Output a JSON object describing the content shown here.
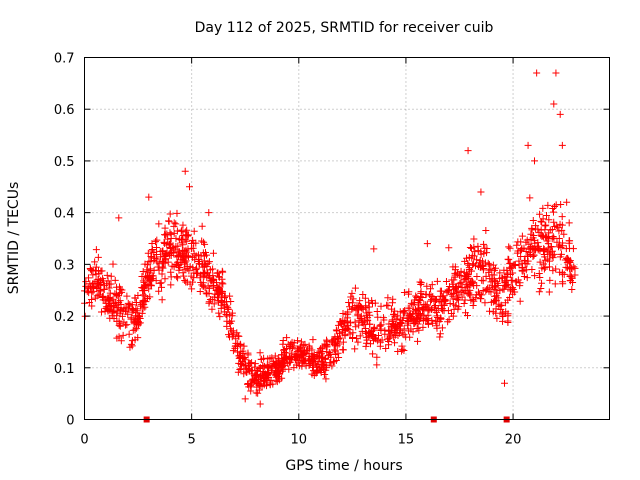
{
  "chart_data": {
    "type": "scatter",
    "title": "Day 112 of 2025, SRMTID for receiver cuib",
    "xlabel": "GPS time / hours",
    "ylabel": "SRMTID / TECUs",
    "xlim": [
      0,
      24.5
    ],
    "ylim": [
      0,
      0.7
    ],
    "x_ticks": [
      0,
      5,
      10,
      15,
      20
    ],
    "y_ticks": [
      0,
      0.1,
      0.2,
      0.3,
      0.4,
      0.5,
      0.6,
      0.7
    ],
    "x_tick_labels": [
      "0",
      "5",
      "10",
      "15",
      "20"
    ],
    "y_tick_labels": [
      "0",
      "0.1",
      "0.2",
      "0.3",
      "0.4",
      "0.5",
      "0.6",
      "0.7"
    ],
    "grid": true,
    "marker": "+",
    "color": "#ff0000",
    "data_gap_markers_x": [
      2.9,
      16.3,
      19.7
    ],
    "series": [
      {
        "name": "SRMTID",
        "profile": [
          [
            0.0,
            0.25,
            0.05
          ],
          [
            0.5,
            0.27,
            0.05
          ],
          [
            1.0,
            0.24,
            0.05
          ],
          [
            1.5,
            0.22,
            0.05
          ],
          [
            2.0,
            0.2,
            0.05
          ],
          [
            2.5,
            0.19,
            0.05
          ],
          [
            3.0,
            0.28,
            0.06
          ],
          [
            3.5,
            0.31,
            0.06
          ],
          [
            4.0,
            0.33,
            0.06
          ],
          [
            4.5,
            0.32,
            0.06
          ],
          [
            5.0,
            0.31,
            0.06
          ],
          [
            5.5,
            0.3,
            0.06
          ],
          [
            6.0,
            0.26,
            0.05
          ],
          [
            6.5,
            0.24,
            0.05
          ],
          [
            7.0,
            0.15,
            0.04
          ],
          [
            7.5,
            0.1,
            0.03
          ],
          [
            8.0,
            0.08,
            0.03
          ],
          [
            8.5,
            0.09,
            0.03
          ],
          [
            9.0,
            0.1,
            0.03
          ],
          [
            9.5,
            0.13,
            0.03
          ],
          [
            10.0,
            0.13,
            0.03
          ],
          [
            10.5,
            0.12,
            0.03
          ],
          [
            11.0,
            0.11,
            0.03
          ],
          [
            11.5,
            0.13,
            0.04
          ],
          [
            12.0,
            0.17,
            0.04
          ],
          [
            12.5,
            0.2,
            0.05
          ],
          [
            13.0,
            0.2,
            0.05
          ],
          [
            13.5,
            0.17,
            0.05
          ],
          [
            14.0,
            0.18,
            0.05
          ],
          [
            14.5,
            0.18,
            0.05
          ],
          [
            15.0,
            0.19,
            0.05
          ],
          [
            15.5,
            0.21,
            0.05
          ],
          [
            16.0,
            0.22,
            0.05
          ],
          [
            16.5,
            0.21,
            0.05
          ],
          [
            17.0,
            0.24,
            0.06
          ],
          [
            17.5,
            0.26,
            0.06
          ],
          [
            18.0,
            0.27,
            0.06
          ],
          [
            18.5,
            0.29,
            0.07
          ],
          [
            19.0,
            0.26,
            0.06
          ],
          [
            19.5,
            0.24,
            0.06
          ],
          [
            20.0,
            0.28,
            0.06
          ],
          [
            20.5,
            0.32,
            0.07
          ],
          [
            21.0,
            0.33,
            0.08
          ],
          [
            21.5,
            0.34,
            0.08
          ],
          [
            22.0,
            0.36,
            0.09
          ],
          [
            22.5,
            0.31,
            0.07
          ],
          [
            22.9,
            0.29,
            0.06
          ]
        ],
        "point_count": 1800,
        "peaks": [
          [
            1.6,
            0.39
          ],
          [
            3.0,
            0.43
          ],
          [
            4.7,
            0.48
          ],
          [
            4.9,
            0.45
          ],
          [
            5.8,
            0.4
          ],
          [
            13.5,
            0.33
          ],
          [
            16.0,
            0.34
          ],
          [
            17.9,
            0.52
          ],
          [
            18.5,
            0.44
          ],
          [
            20.7,
            0.53
          ],
          [
            21.0,
            0.5
          ],
          [
            21.1,
            0.67
          ],
          [
            21.9,
            0.61
          ],
          [
            22.0,
            0.67
          ],
          [
            22.2,
            0.59
          ],
          [
            22.3,
            0.53
          ],
          [
            22.5,
            0.42
          ],
          [
            19.6,
            0.07
          ],
          [
            8.2,
            0.03
          ],
          [
            7.5,
            0.04
          ]
        ]
      }
    ]
  }
}
